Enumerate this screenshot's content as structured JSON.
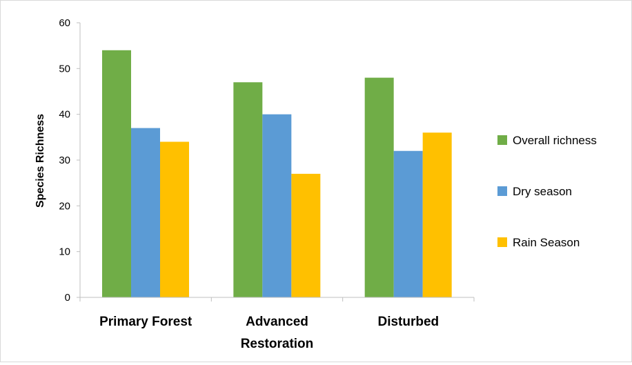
{
  "chart_data": {
    "type": "bar",
    "title": "",
    "xlabel": "",
    "ylabel": "Species Richness",
    "ylim": [
      0,
      60
    ],
    "yticks": [
      0,
      10,
      20,
      30,
      40,
      50,
      60
    ],
    "grid": false,
    "legend_position": "right",
    "categories": [
      [
        "Primary Forest"
      ],
      [
        "Advanced",
        "Restoration"
      ],
      [
        "Disturbed"
      ]
    ],
    "series": [
      {
        "name": "Overall richness",
        "color": "#70ad47",
        "values": [
          54,
          47,
          48
        ]
      },
      {
        "name": "Dry season",
        "color": "#5b9bd5",
        "values": [
          37,
          40,
          32
        ]
      },
      {
        "name": "Rain Season",
        "color": "#ffc000",
        "values": [
          34,
          27,
          36
        ]
      }
    ]
  }
}
